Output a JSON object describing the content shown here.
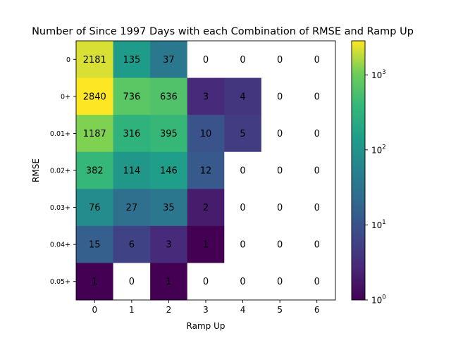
{
  "chart_data": {
    "type": "heatmap",
    "title": "Number of Since 1997 Days with each Combination of RMSE and Ramp Up",
    "xlabel": "Ramp Up",
    "ylabel": "RMSE",
    "x_categories": [
      "0",
      "1",
      "2",
      "3",
      "4",
      "5",
      "6"
    ],
    "y_categories": [
      "0",
      "0+",
      "0.01+",
      "0.02+",
      "0.03+",
      "0.04+",
      "0.05+"
    ],
    "values": [
      [
        2181,
        135,
        37,
        0,
        0,
        0,
        0
      ],
      [
        2840,
        736,
        636,
        3,
        4,
        0,
        0
      ],
      [
        1187,
        316,
        395,
        10,
        5,
        0,
        0
      ],
      [
        382,
        114,
        146,
        12,
        0,
        0,
        0
      ],
      [
        76,
        27,
        35,
        2,
        0,
        0,
        0
      ],
      [
        15,
        6,
        3,
        1,
        0,
        0,
        0
      ],
      [
        1,
        0,
        1,
        0,
        0,
        0,
        0
      ]
    ],
    "color_scale": "log",
    "colormap": "viridis",
    "zero_color": "#ffffff",
    "colorbar": {
      "range": [
        1,
        2840
      ],
      "ticks": [
        {
          "base": "10",
          "exp": "0",
          "value": 1
        },
        {
          "base": "10",
          "exp": "1",
          "value": 10
        },
        {
          "base": "10",
          "exp": "2",
          "value": 100
        },
        {
          "base": "10",
          "exp": "3",
          "value": 1000
        }
      ]
    },
    "grid": false
  }
}
